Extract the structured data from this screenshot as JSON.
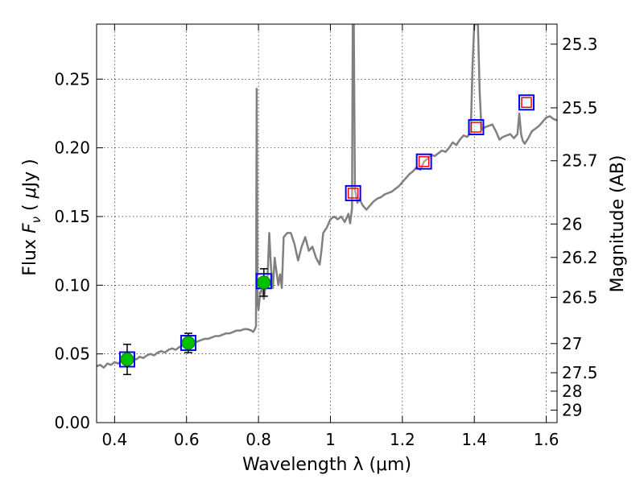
{
  "chart_data": {
    "type": "line",
    "xlabel": "Wavelength  λ (μm)",
    "ylabel": "Flux  F_ν  ( μJy )",
    "ylabel_parts": {
      "pre": "Flux  ",
      "sym": "F",
      "sub": "ν",
      "post": "  ( ",
      "unit": "μ",
      "unit_tail": "Jy )"
    },
    "y2label": "Magnitude (AB)",
    "xlim": [
      0.35,
      1.63
    ],
    "ylim": [
      0.0,
      0.29
    ],
    "grid": true,
    "x_ticks": [
      {
        "value": 0.4,
        "label": "0.4"
      },
      {
        "value": 0.6,
        "label": "0.6"
      },
      {
        "value": 0.8,
        "label": "0.8"
      },
      {
        "value": 1.0,
        "label": "1"
      },
      {
        "value": 1.2,
        "label": "1.2"
      },
      {
        "value": 1.4,
        "label": "1.4"
      },
      {
        "value": 1.6,
        "label": "1.6"
      }
    ],
    "y_ticks": [
      {
        "value": 0.0,
        "label": "0.00"
      },
      {
        "value": 0.05,
        "label": "0.05"
      },
      {
        "value": 0.1,
        "label": "0.10"
      },
      {
        "value": 0.15,
        "label": "0.15"
      },
      {
        "value": 0.2,
        "label": "0.20"
      },
      {
        "value": 0.25,
        "label": "0.25"
      }
    ],
    "mag_ticks": [
      {
        "mag": 25.3,
        "label": "25.3"
      },
      {
        "mag": 25.5,
        "label": "25.5"
      },
      {
        "mag": 25.7,
        "label": "25.7"
      },
      {
        "mag": 26.0,
        "label": "26"
      },
      {
        "mag": 26.2,
        "label": "26.2"
      },
      {
        "mag": 26.5,
        "label": "26.5"
      },
      {
        "mag": 27.0,
        "label": "27"
      },
      {
        "mag": 27.5,
        "label": "27.5"
      },
      {
        "mag": 28.0,
        "label": "28"
      },
      {
        "mag": 29.0,
        "label": "29"
      }
    ],
    "series": [
      {
        "type": "line",
        "color": "#808080",
        "points": [
          [
            0.35,
            0.041
          ],
          [
            0.36,
            0.042
          ],
          [
            0.37,
            0.04
          ],
          [
            0.38,
            0.043
          ],
          [
            0.39,
            0.042
          ],
          [
            0.4,
            0.044
          ],
          [
            0.41,
            0.043
          ],
          [
            0.42,
            0.045
          ],
          [
            0.43,
            0.046
          ],
          [
            0.44,
            0.045
          ],
          [
            0.45,
            0.047
          ],
          [
            0.46,
            0.046
          ],
          [
            0.47,
            0.048
          ],
          [
            0.48,
            0.047
          ],
          [
            0.49,
            0.049
          ],
          [
            0.5,
            0.05
          ],
          [
            0.51,
            0.049
          ],
          [
            0.52,
            0.051
          ],
          [
            0.53,
            0.052
          ],
          [
            0.54,
            0.051
          ],
          [
            0.55,
            0.053
          ],
          [
            0.56,
            0.054
          ],
          [
            0.57,
            0.053
          ],
          [
            0.58,
            0.055
          ],
          [
            0.59,
            0.056
          ],
          [
            0.6,
            0.057
          ],
          [
            0.61,
            0.058
          ],
          [
            0.62,
            0.058
          ],
          [
            0.63,
            0.059
          ],
          [
            0.64,
            0.06
          ],
          [
            0.65,
            0.061
          ],
          [
            0.66,
            0.061
          ],
          [
            0.67,
            0.062
          ],
          [
            0.68,
            0.063
          ],
          [
            0.69,
            0.063
          ],
          [
            0.7,
            0.064
          ],
          [
            0.71,
            0.065
          ],
          [
            0.72,
            0.065
          ],
          [
            0.73,
            0.066
          ],
          [
            0.74,
            0.067
          ],
          [
            0.75,
            0.067
          ],
          [
            0.76,
            0.068
          ],
          [
            0.77,
            0.068
          ],
          [
            0.78,
            0.067
          ],
          [
            0.785,
            0.066
          ],
          [
            0.79,
            0.068
          ],
          [
            0.793,
            0.07
          ],
          [
            0.795,
            0.243
          ],
          [
            0.797,
            0.09
          ],
          [
            0.8,
            0.082
          ],
          [
            0.805,
            0.095
          ],
          [
            0.81,
            0.097
          ],
          [
            0.815,
            0.09
          ],
          [
            0.82,
            0.1
          ],
          [
            0.825,
            0.105
          ],
          [
            0.83,
            0.138
          ],
          [
            0.835,
            0.112
          ],
          [
            0.84,
            0.098
          ],
          [
            0.845,
            0.12
          ],
          [
            0.85,
            0.11
          ],
          [
            0.855,
            0.1
          ],
          [
            0.86,
            0.108
          ],
          [
            0.865,
            0.098
          ],
          [
            0.87,
            0.135
          ],
          [
            0.88,
            0.138
          ],
          [
            0.89,
            0.138
          ],
          [
            0.9,
            0.13
          ],
          [
            0.91,
            0.118
          ],
          [
            0.92,
            0.128
          ],
          [
            0.93,
            0.135
          ],
          [
            0.94,
            0.125
          ],
          [
            0.95,
            0.128
          ],
          [
            0.96,
            0.12
          ],
          [
            0.97,
            0.115
          ],
          [
            0.975,
            0.125
          ],
          [
            0.98,
            0.138
          ],
          [
            0.99,
            0.142
          ],
          [
            1.0,
            0.148
          ],
          [
            1.01,
            0.15
          ],
          [
            1.02,
            0.148
          ],
          [
            1.03,
            0.15
          ],
          [
            1.04,
            0.146
          ],
          [
            1.05,
            0.152
          ],
          [
            1.055,
            0.145
          ],
          [
            1.06,
            0.156
          ],
          [
            1.062,
            0.29
          ],
          [
            1.065,
            0.29
          ],
          [
            1.068,
            0.17
          ],
          [
            1.075,
            0.16
          ],
          [
            1.08,
            0.163
          ],
          [
            1.09,
            0.158
          ],
          [
            1.1,
            0.155
          ],
          [
            1.11,
            0.158
          ],
          [
            1.12,
            0.161
          ],
          [
            1.13,
            0.163
          ],
          [
            1.14,
            0.164
          ],
          [
            1.15,
            0.166
          ],
          [
            1.16,
            0.167
          ],
          [
            1.17,
            0.168
          ],
          [
            1.18,
            0.17
          ],
          [
            1.19,
            0.172
          ],
          [
            1.2,
            0.175
          ],
          [
            1.21,
            0.178
          ],
          [
            1.22,
            0.181
          ],
          [
            1.23,
            0.183
          ],
          [
            1.24,
            0.186
          ],
          [
            1.25,
            0.184
          ],
          [
            1.26,
            0.19
          ],
          [
            1.27,
            0.192
          ],
          [
            1.28,
            0.195
          ],
          [
            1.29,
            0.194
          ],
          [
            1.3,
            0.196
          ],
          [
            1.31,
            0.198
          ],
          [
            1.32,
            0.197
          ],
          [
            1.33,
            0.2
          ],
          [
            1.34,
            0.204
          ],
          [
            1.35,
            0.202
          ],
          [
            1.36,
            0.206
          ],
          [
            1.37,
            0.209
          ],
          [
            1.38,
            0.208
          ],
          [
            1.39,
            0.211
          ],
          [
            1.395,
            0.26
          ],
          [
            1.4,
            0.29
          ],
          [
            1.41,
            0.29
          ],
          [
            1.415,
            0.24
          ],
          [
            1.42,
            0.213
          ],
          [
            1.43,
            0.215
          ],
          [
            1.44,
            0.216
          ],
          [
            1.45,
            0.217
          ],
          [
            1.46,
            0.212
          ],
          [
            1.47,
            0.206
          ],
          [
            1.48,
            0.208
          ],
          [
            1.49,
            0.209
          ],
          [
            1.5,
            0.21
          ],
          [
            1.51,
            0.207
          ],
          [
            1.52,
            0.21
          ],
          [
            1.525,
            0.225
          ],
          [
            1.53,
            0.21
          ],
          [
            1.535,
            0.205
          ],
          [
            1.54,
            0.203
          ],
          [
            1.55,
            0.207
          ],
          [
            1.56,
            0.212
          ],
          [
            1.57,
            0.214
          ],
          [
            1.58,
            0.216
          ],
          [
            1.59,
            0.219
          ],
          [
            1.6,
            0.222
          ],
          [
            1.61,
            0.223
          ],
          [
            1.62,
            0.221
          ],
          [
            1.63,
            0.22
          ]
        ]
      },
      {
        "type": "model-squares",
        "color": "#0000ff",
        "points": [
          [
            0.435,
            0.046
          ],
          [
            0.605,
            0.058
          ],
          [
            0.815,
            0.103
          ],
          [
            1.063,
            0.167
          ],
          [
            1.26,
            0.19
          ],
          [
            1.405,
            0.215
          ],
          [
            1.545,
            0.233
          ]
        ]
      },
      {
        "type": "upper-limit-squares",
        "color": "#ff0000",
        "points": [
          [
            1.063,
            0.167
          ],
          [
            1.26,
            0.19
          ],
          [
            1.405,
            0.215
          ],
          [
            1.545,
            0.233
          ]
        ]
      },
      {
        "type": "detections",
        "color": "#00c000",
        "points": [
          [
            0.435,
            0.046,
            0.035,
            0.057
          ],
          [
            0.605,
            0.058,
            0.051,
            0.065
          ],
          [
            0.815,
            0.102,
            0.092,
            0.112
          ]
        ]
      }
    ]
  }
}
